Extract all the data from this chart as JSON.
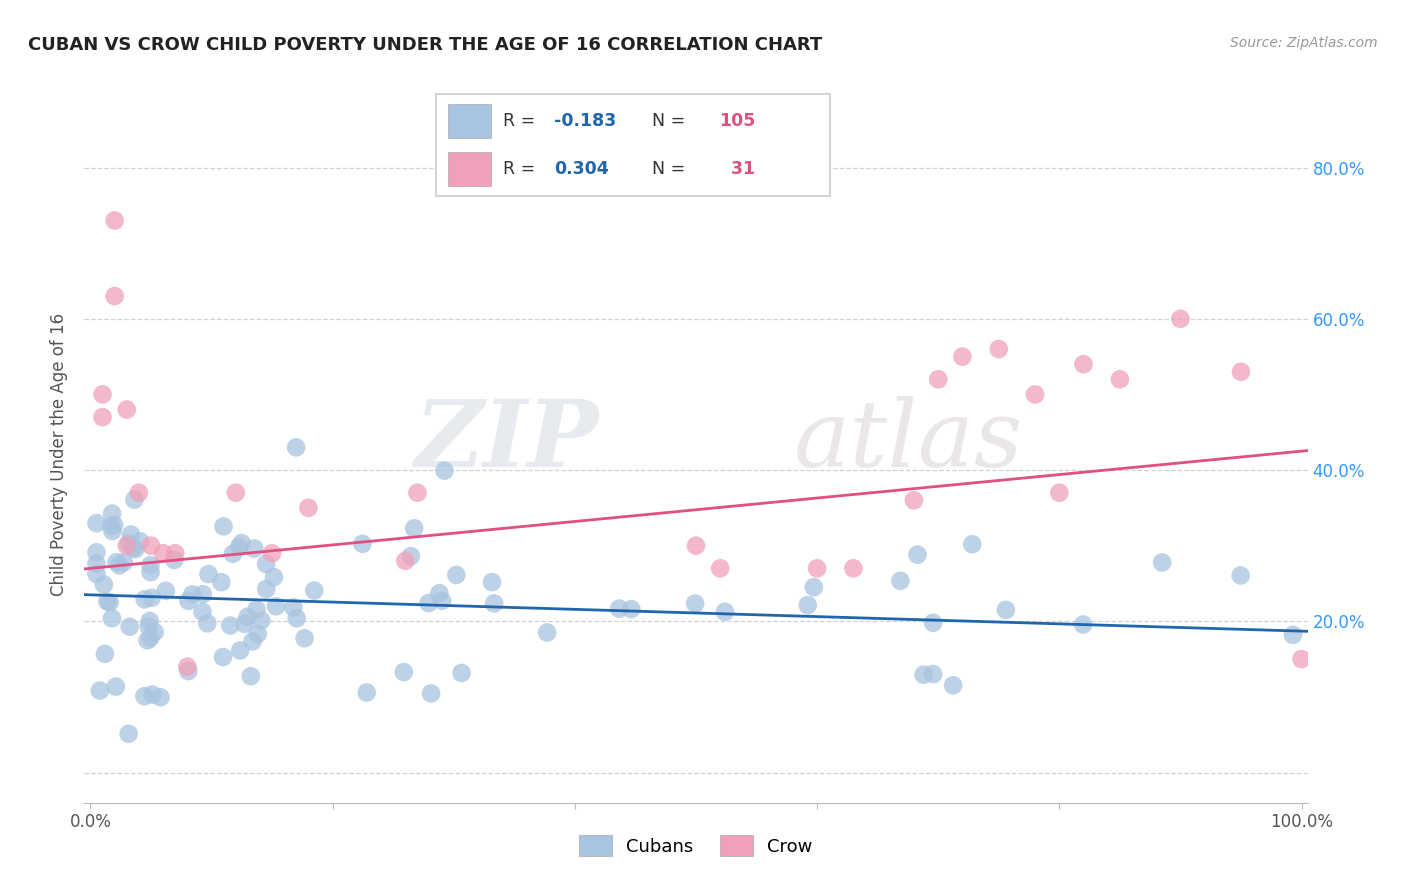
{
  "title": "CUBAN VS CROW CHILD POVERTY UNDER THE AGE OF 16 CORRELATION CHART",
  "source": "Source: ZipAtlas.com",
  "ylabel": "Child Poverty Under the Age of 16",
  "cuban_color": "#a8c4e0",
  "crow_color": "#f0a0b8",
  "cuban_line_color": "#2166ac",
  "crow_line_color": "#e05080",
  "cuban_R": -0.183,
  "cuban_N": 105,
  "crow_R": 0.304,
  "crow_N": 31,
  "watermark_zip": "ZIP",
  "watermark_atlas": "atlas",
  "background_color": "#ffffff",
  "grid_color": "#cccccc",
  "ytick_color": "#3399ff",
  "cuban_line_intercept": 0.235,
  "cuban_line_slope": -0.048,
  "crow_line_intercept": 0.27,
  "crow_line_slope": 0.155
}
